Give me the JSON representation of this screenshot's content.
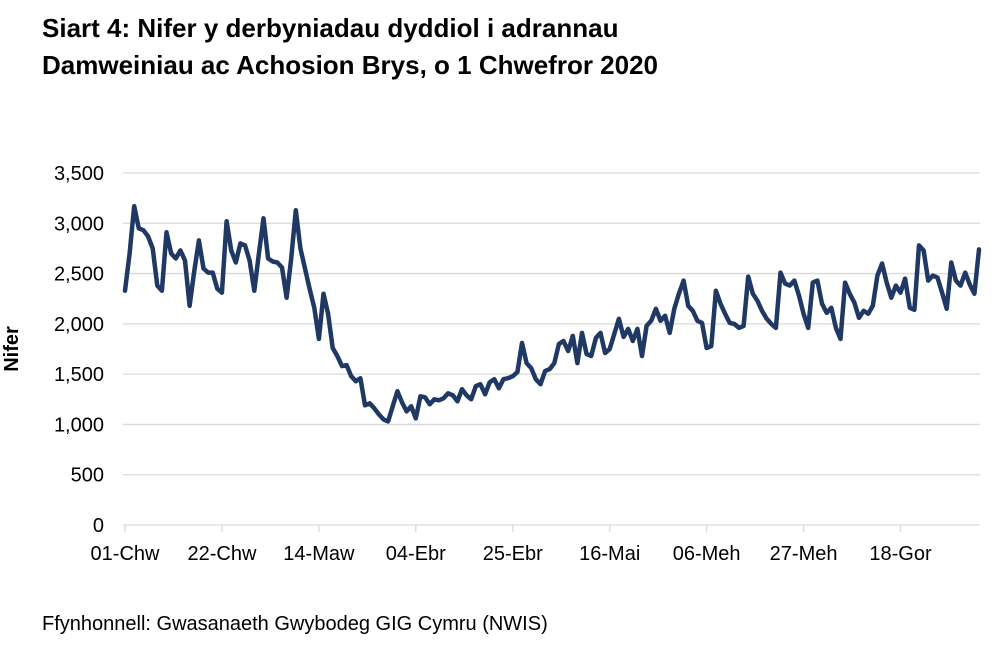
{
  "header": {
    "line1": "Siart 4: Nifer y derbyniadau dyddiol i adrannau",
    "line2": "Damweiniau ac Achosion Brys, o 1 Chwefror 2020"
  },
  "footer": {
    "text": "Ffynhonnell: Gwasanaeth Gwybodeg GIG Cymru (NWIS)"
  },
  "chart_data": {
    "type": "line",
    "title": "Siart 4: Nifer y derbyniadau dyddiol i adrannau Damweiniau ac Achosion Brys, o 1 Chwefror 2020",
    "ylabel": "Nifer",
    "ylim": [
      0,
      3500
    ],
    "ytick_values": [
      0,
      500,
      1000,
      1500,
      2000,
      2500,
      3000,
      3500
    ],
    "ytick_labels": [
      "0",
      "500",
      "1,000",
      "1,500",
      "2,000",
      "2,500",
      "3,000",
      "3,500"
    ],
    "xtick_labels": [
      "01-Chw",
      "22-Chw",
      "14-Maw",
      "04-Ebr",
      "25-Ebr",
      "16-Mai",
      "06-Meh",
      "27-Meh",
      "18-Gor"
    ],
    "xtick_days": [
      0,
      21,
      42,
      63,
      84,
      105,
      126,
      147,
      168
    ],
    "grid": "horizontal",
    "legend": "none",
    "line_color": "#1F3864",
    "gridline_color": "#D9D9D9",
    "frequency": "dyddiol",
    "values": [
      2330,
      2700,
      3170,
      2950,
      2930,
      2870,
      2750,
      2380,
      2330,
      2910,
      2700,
      2650,
      2730,
      2630,
      2180,
      2520,
      2830,
      2550,
      2510,
      2510,
      2350,
      2310,
      3020,
      2730,
      2610,
      2800,
      2780,
      2630,
      2330,
      2700,
      3050,
      2650,
      2620,
      2610,
      2560,
      2260,
      2650,
      3130,
      2750,
      2550,
      2350,
      2160,
      1850,
      2300,
      2100,
      1760,
      1680,
      1580,
      1590,
      1480,
      1430,
      1460,
      1190,
      1210,
      1160,
      1100,
      1050,
      1030,
      1180,
      1330,
      1220,
      1130,
      1180,
      1060,
      1280,
      1270,
      1200,
      1250,
      1240,
      1260,
      1310,
      1290,
      1230,
      1350,
      1290,
      1250,
      1380,
      1400,
      1300,
      1420,
      1450,
      1360,
      1450,
      1460,
      1480,
      1520,
      1810,
      1610,
      1560,
      1450,
      1400,
      1530,
      1550,
      1610,
      1800,
      1830,
      1730,
      1880,
      1610,
      1910,
      1700,
      1680,
      1860,
      1910,
      1710,
      1750,
      1900,
      2050,
      1870,
      1950,
      1830,
      1950,
      1680,
      1980,
      2030,
      2150,
      2030,
      2080,
      1910,
      2150,
      2300,
      2430,
      2180,
      2130,
      2030,
      2010,
      1760,
      1780,
      2330,
      2200,
      2100,
      2010,
      2000,
      1960,
      1980,
      2470,
      2300,
      2230,
      2130,
      2050,
      2000,
      1960,
      2510,
      2400,
      2380,
      2430,
      2280,
      2100,
      1960,
      2410,
      2430,
      2200,
      2110,
      2160,
      1960,
      1850,
      2410,
      2300,
      2210,
      2060,
      2130,
      2100,
      2180,
      2480,
      2600,
      2410,
      2260,
      2380,
      2310,
      2450,
      2160,
      2140,
      2780,
      2730,
      2430,
      2480,
      2460,
      2310,
      2150,
      2610,
      2430,
      2380,
      2510,
      2390,
      2300,
      2740
    ]
  }
}
